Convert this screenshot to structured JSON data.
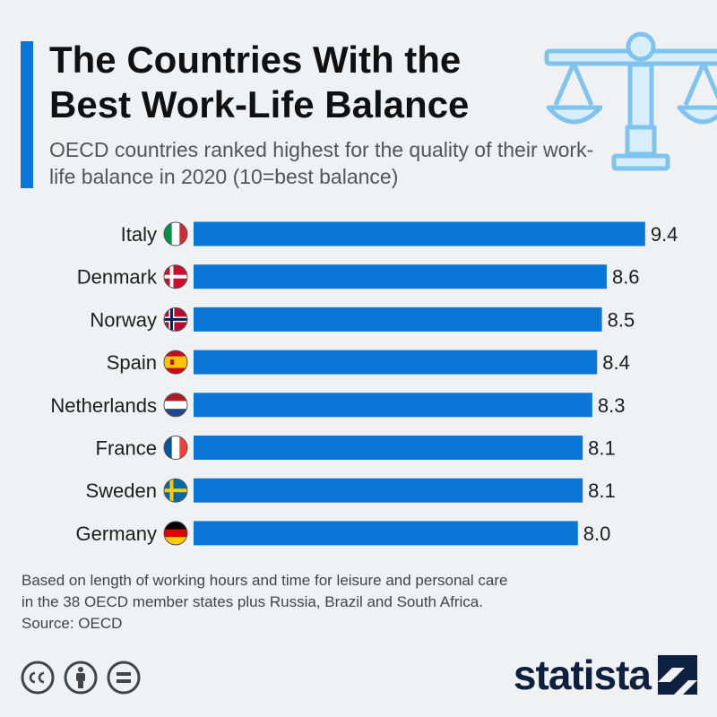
{
  "header": {
    "title": "The Countries With the Best Work-Life Balance",
    "subtitle": "OECD countries ranked highest for the quality of their work-life balance in 2020 (10=best balance)"
  },
  "icons": {
    "header_illustration": "balance-scale-icon",
    "license": [
      "creative-commons-icon",
      "attribution-icon",
      "no-derivatives-icon"
    ],
    "brand_logo": "statista-logo-icon"
  },
  "colors": {
    "bar": "#0a76d8",
    "accent": "#0a76d8",
    "illustration": "#7fc4ee"
  },
  "chart_data": {
    "type": "bar",
    "orientation": "horizontal",
    "categories": [
      "Italy",
      "Denmark",
      "Norway",
      "Spain",
      "Netherlands",
      "France",
      "Sweden",
      "Germany"
    ],
    "values": [
      9.4,
      8.6,
      8.5,
      8.4,
      8.3,
      8.1,
      8.1,
      8.0
    ],
    "value_labels": [
      "9.4",
      "8.6",
      "8.5",
      "8.4",
      "8.3",
      "8.1",
      "8.1",
      "8.0"
    ],
    "flags": [
      "italy-flag-icon",
      "denmark-flag-icon",
      "norway-flag-icon",
      "spain-flag-icon",
      "netherlands-flag-icon",
      "france-flag-icon",
      "sweden-flag-icon",
      "germany-flag-icon"
    ],
    "xlim": [
      0,
      10
    ],
    "title": "",
    "xlabel": "",
    "ylabel": "",
    "grid": false,
    "legend": "none"
  },
  "footer": {
    "note_line1": "Based on length of working hours and time for leisure and personal care",
    "note_line2": "in the 38 OECD member states plus Russia, Brazil and South Africa.",
    "source": "Source: OECD",
    "brand": "statista"
  }
}
